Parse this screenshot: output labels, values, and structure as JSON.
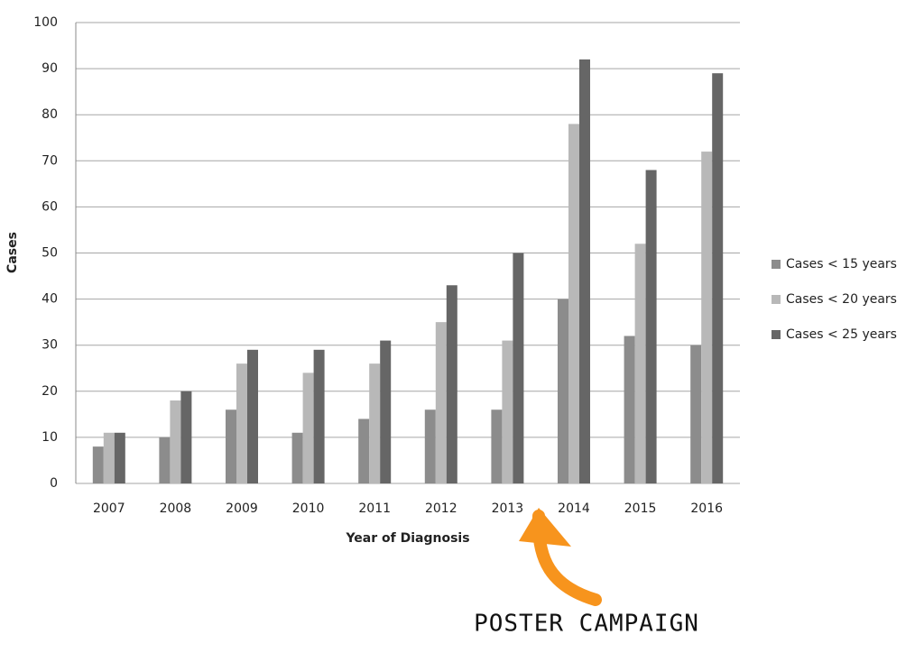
{
  "chart_data": {
    "type": "bar",
    "x_label": "Year of Diagnosis",
    "y_label": "Cases",
    "categories": [
      "2007",
      "2008",
      "2009",
      "2010",
      "2011",
      "2012",
      "2013",
      "2014",
      "2015",
      "2016"
    ],
    "series": [
      {
        "name": "Cases < 15 years",
        "color": "#8c8c8c",
        "values": [
          8,
          10,
          16,
          11,
          14,
          16,
          16,
          40,
          32,
          30
        ]
      },
      {
        "name": "Cases < 20 years",
        "color": "#b8b8b8",
        "values": [
          11,
          18,
          26,
          24,
          26,
          35,
          31,
          78,
          52,
          72
        ]
      },
      {
        "name": "Cases < 25 years",
        "color": "#666666",
        "values": [
          11,
          20,
          29,
          29,
          31,
          43,
          50,
          92,
          68,
          89
        ]
      }
    ],
    "ylim": [
      0,
      100
    ],
    "yticks": [
      0,
      10,
      20,
      30,
      40,
      50,
      60,
      70,
      80,
      90,
      100
    ],
    "grid": true,
    "legend": "right",
    "annotation": "POSTER CAMPAIGN"
  }
}
